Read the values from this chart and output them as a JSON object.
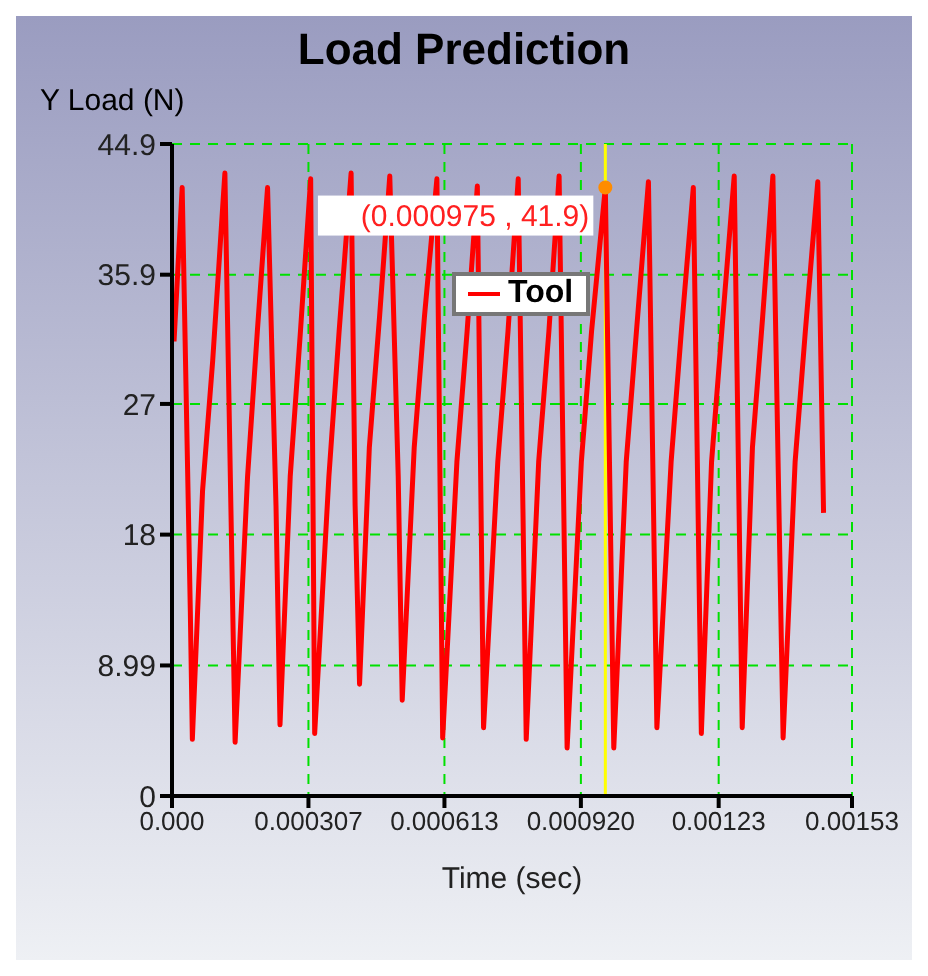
{
  "chart_data": {
    "type": "line",
    "title": "Load Prediction",
    "xlabel": "Time (sec)",
    "ylabel": "Y Load (N)",
    "xlim": [
      0,
      0.00153
    ],
    "xticks": [
      {
        "value": 0,
        "label": "0.000"
      },
      0.000307,
      0.000613,
      {
        "value": 0.00092,
        "label": "0.000920"
      },
      0.00123,
      0.00153
    ],
    "ylim": [
      0,
      44.9
    ],
    "yticks": [
      0,
      8.99,
      18,
      27,
      35.9,
      44.9
    ],
    "grid": true,
    "legend": "top",
    "marker": "none",
    "line_style": "solid",
    "ref_lines": [
      {
        "axis": "x",
        "value": 0.000975,
        "color": "#ffff00"
      }
    ],
    "annotations": [
      {
        "text": "(0.000975 , 41.9)",
        "x": 0.000975,
        "y": 41.9
      }
    ],
    "x": [
      4.6e-06,
      2.29e-05,
      4.12e-05,
      4.58e-05,
      6.87e-05,
      9.16e-05,
      0.000119,
      0.000142,
      0.00017,
      0.000192,
      0.000215,
      0.000234,
      0.000243,
      0.000266,
      0.000289,
      0.000312,
      0.000321,
      0.000353,
      0.000376,
      0.000403,
      0.000412,
      0.000422,
      0.000444,
      0.000467,
      0.00049,
      0.000509,
      0.000518,
      0.000545,
      0.000568,
      0.000596,
      0.000609,
      0.000641,
      0.000664,
      0.000687,
      0.000701,
      0.000733,
      0.000756,
      0.000779,
      0.000797,
      0.000825,
      0.000848,
      0.000871,
      0.000889,
      0.000921,
      0.000944,
      0.000975,
      0.000994,
      0.001022,
      0.001045,
      0.001072,
      0.001091,
      0.001123,
      0.001146,
      0.001173,
      0.001191,
      0.001214,
      0.001237,
      0.001265,
      0.001283,
      0.001306,
      0.001329,
      0.001352,
      0.001375,
      0.001402,
      0.001425,
      0.001453,
      0.001466
    ],
    "series": [
      {
        "name": "Tool",
        "color": "#ff0000",
        "values": [
          31.3,
          41.9,
          12.8,
          3.9,
          21,
          30,
          42.9,
          3.7,
          22,
          32,
          41.9,
          20,
          4.9,
          22,
          32,
          42.5,
          4.3,
          22,
          32,
          42.9,
          20,
          7.7,
          24,
          33,
          42.7,
          22,
          6.6,
          24,
          33,
          42.5,
          4.0,
          23,
          32,
          42.0,
          4.7,
          23,
          32,
          42.5,
          3.9,
          23,
          32,
          42.7,
          3.3,
          23,
          32,
          41.9,
          3.3,
          23,
          32,
          42.3,
          4.7,
          23,
          32,
          41.9,
          4.3,
          23,
          32,
          42.7,
          4.7,
          24,
          33,
          42.7,
          4.0,
          23,
          32,
          42.3,
          19.5
        ]
      }
    ]
  }
}
